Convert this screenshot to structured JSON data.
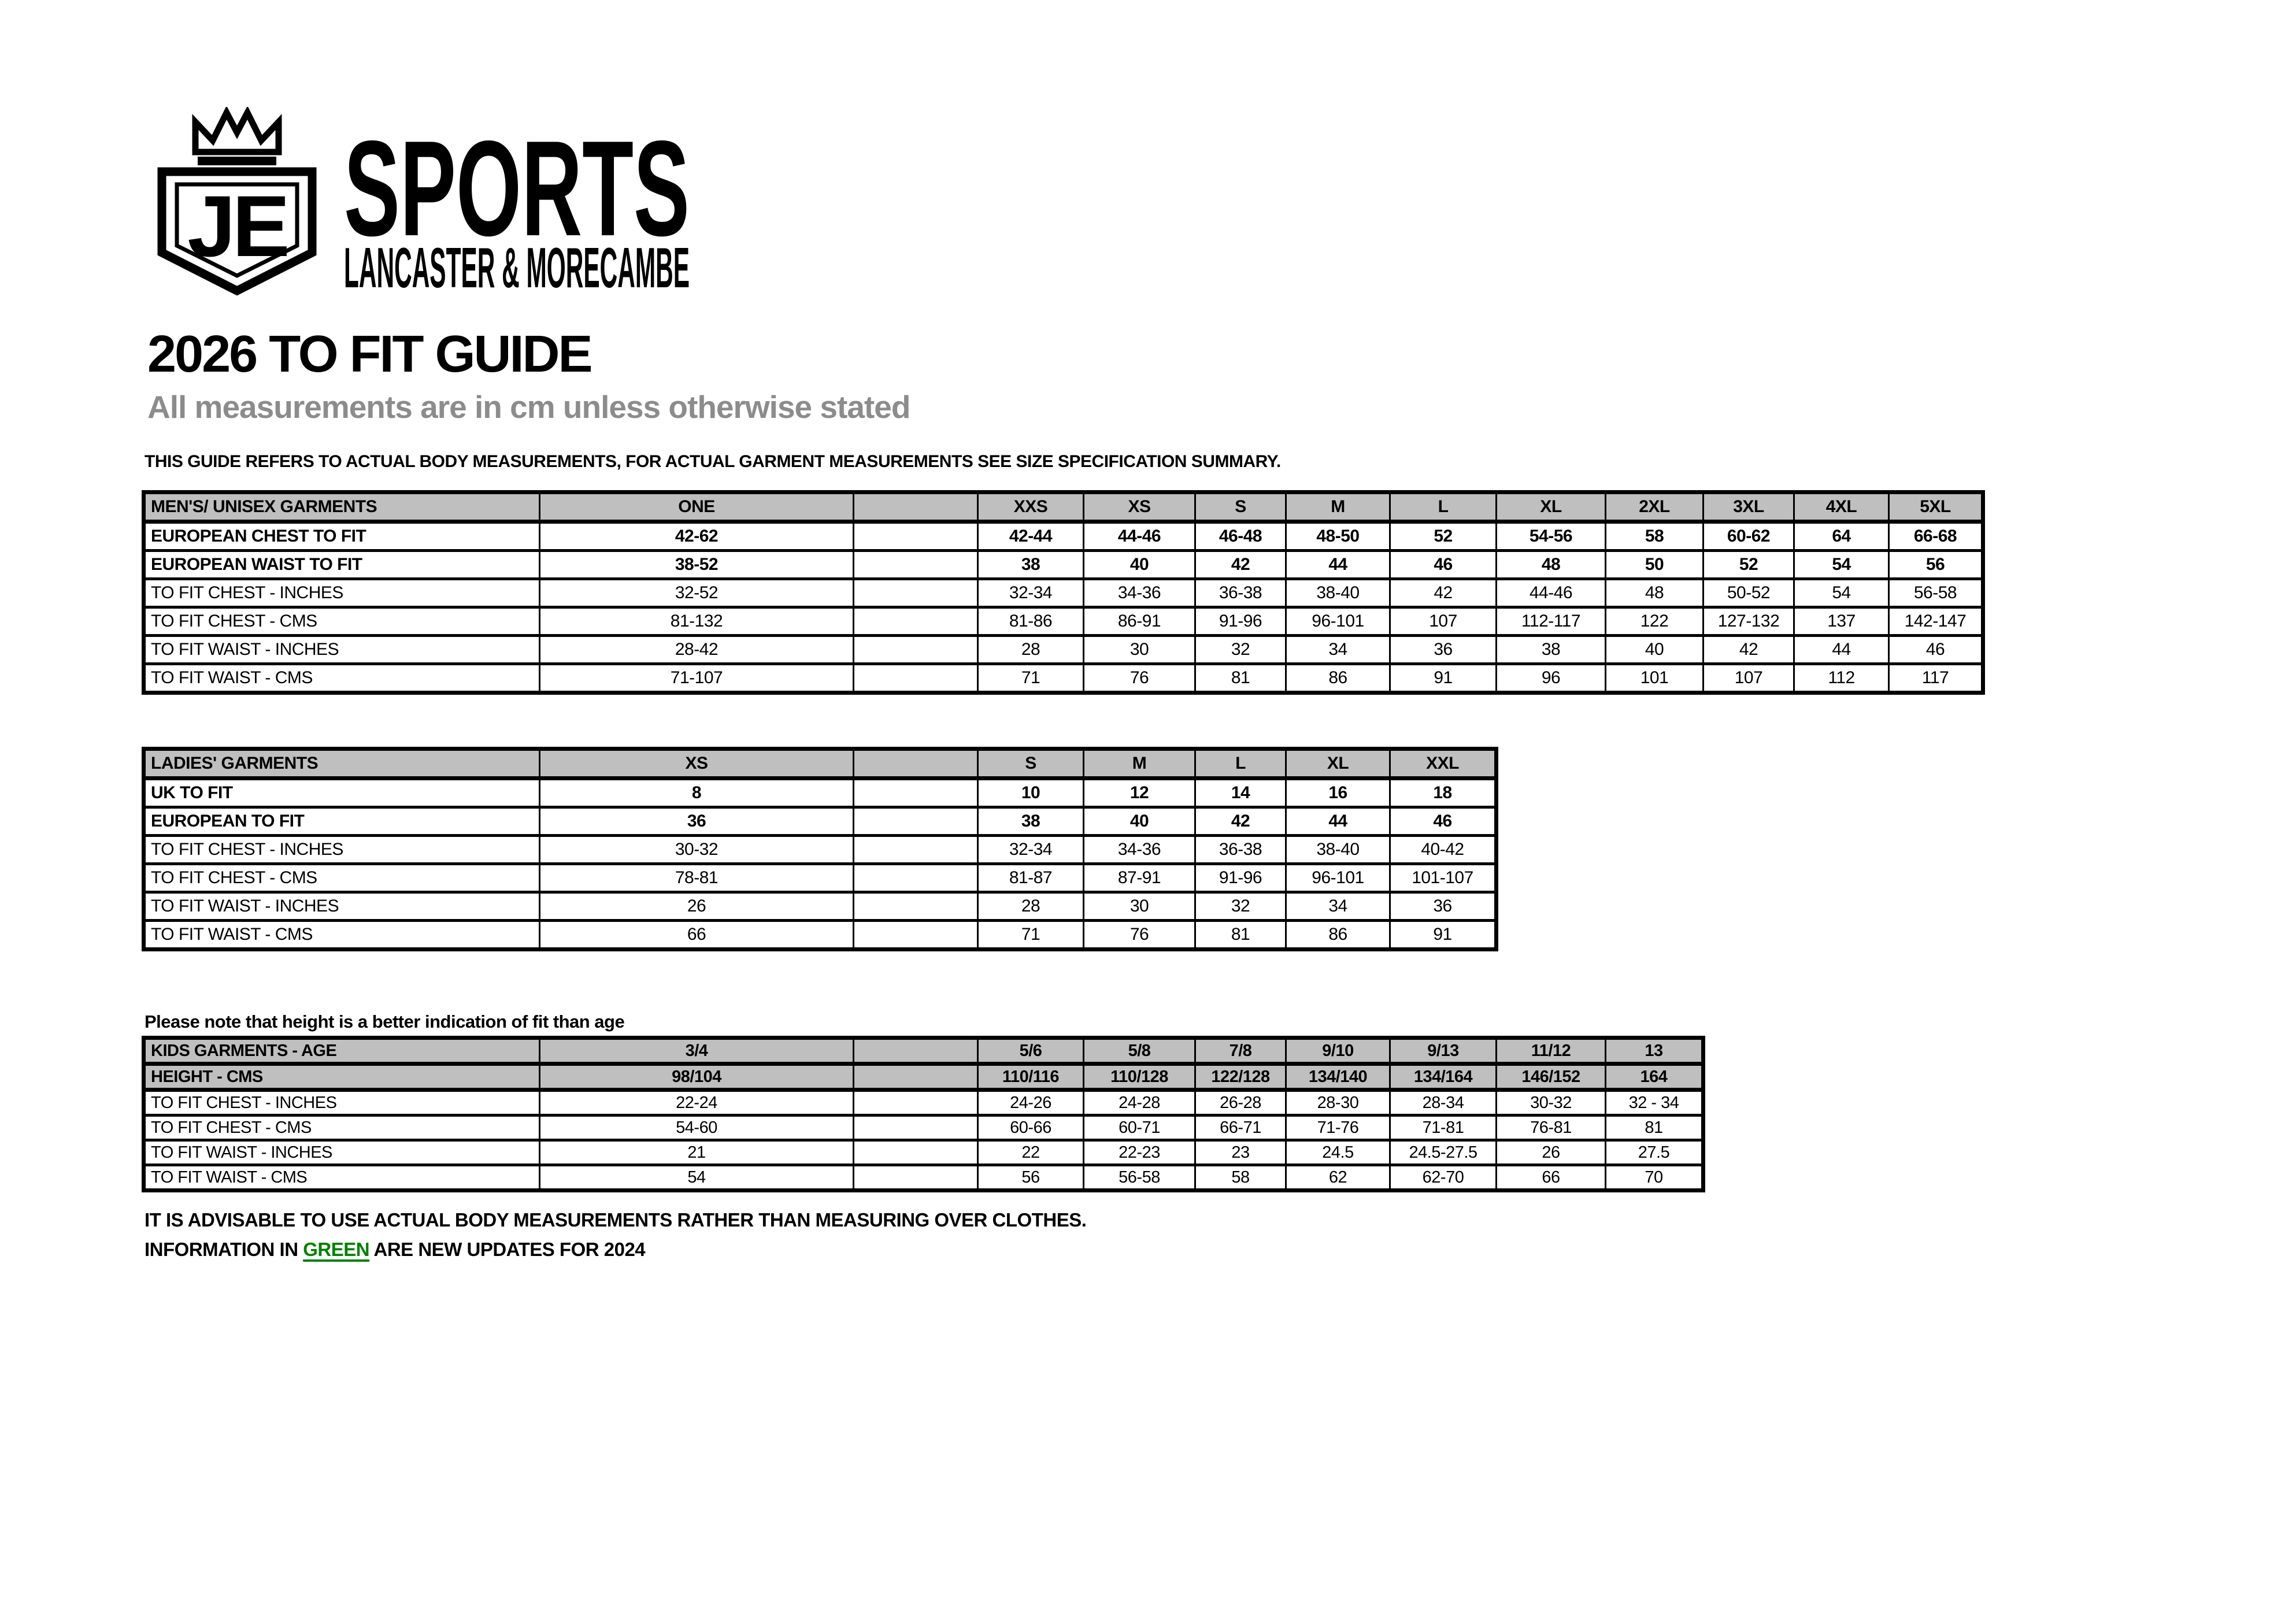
{
  "logo": {
    "monogram": "JE",
    "brand": "SPORTS",
    "tagline": "LANCASTER & MORECAMBE"
  },
  "heading": {
    "title": "2026 TO FIT GUIDE",
    "subtitle": "All measurements are in cm unless otherwise stated",
    "note": "THIS GUIDE REFERS TO ACTUAL BODY MEASUREMENTS, FOR ACTUAL GARMENT MEASUREMENTS SEE SIZE SPECIFICATION SUMMARY."
  },
  "tables": {
    "mens": {
      "rows": [
        {
          "style": "header",
          "label": "MEN'S/ UNISEX GARMENTS",
          "one": "ONE",
          "cells": [
            "XXS",
            "XS",
            "S",
            "M",
            "L",
            "XL",
            "2XL",
            "3XL",
            "4XL",
            "5XL"
          ]
        },
        {
          "style": "bold",
          "label": "EUROPEAN CHEST TO FIT",
          "one": "42-62",
          "cells": [
            "42-44",
            "44-46",
            "46-48",
            "48-50",
            "52",
            "54-56",
            "58",
            "60-62",
            "64",
            "66-68"
          ]
        },
        {
          "style": "bold",
          "label": "EUROPEAN WAIST TO FIT",
          "one": "38-52",
          "cells": [
            "38",
            "40",
            "42",
            "44",
            "46",
            "48",
            "50",
            "52",
            "54",
            "56"
          ]
        },
        {
          "style": "plain",
          "label": "TO FIT CHEST - INCHES",
          "one": "32-52",
          "cells": [
            "32-34",
            "34-36",
            "36-38",
            "38-40",
            "42",
            "44-46",
            "48",
            "50-52",
            "54",
            "56-58"
          ]
        },
        {
          "style": "plain",
          "label": "TO FIT CHEST - CMS",
          "one": "81-132",
          "cells": [
            "81-86",
            "86-91",
            "91-96",
            "96-101",
            "107",
            "112-117",
            "122",
            "127-132",
            "137",
            "142-147"
          ]
        },
        {
          "style": "plain",
          "label": "TO FIT WAIST - INCHES",
          "one": "28-42",
          "cells": [
            "28",
            "30",
            "32",
            "34",
            "36",
            "38",
            "40",
            "42",
            "44",
            "46"
          ]
        },
        {
          "style": "plain",
          "label": "TO FIT WAIST - CMS",
          "one": "71-107",
          "cells": [
            "71",
            "76",
            "81",
            "86",
            "91",
            "96",
            "101",
            "107",
            "112",
            "117"
          ]
        }
      ]
    },
    "ladies": {
      "rows": [
        {
          "style": "header",
          "label": "LADIES' GARMENTS",
          "one": "XS",
          "cells": [
            "S",
            "M",
            "L",
            "XL",
            "XXL"
          ]
        },
        {
          "style": "bold",
          "label": "UK TO FIT",
          "one": "8",
          "cells": [
            "10",
            "12",
            "14",
            "16",
            "18"
          ]
        },
        {
          "style": "bold",
          "label": "EUROPEAN TO FIT",
          "one": "36",
          "cells": [
            "38",
            "40",
            "42",
            "44",
            "46"
          ]
        },
        {
          "style": "plain",
          "label": "TO FIT CHEST - INCHES",
          "one": "30-32",
          "cells": [
            "32-34",
            "34-36",
            "36-38",
            "38-40",
            "40-42"
          ]
        },
        {
          "style": "plain",
          "label": "TO FIT CHEST - CMS",
          "one": "78-81",
          "cells": [
            "81-87",
            "87-91",
            "91-96",
            "96-101",
            "101-107"
          ]
        },
        {
          "style": "plain",
          "label": "TO FIT WAIST - INCHES",
          "one": "26",
          "cells": [
            "28",
            "30",
            "32",
            "34",
            "36"
          ]
        },
        {
          "style": "plain",
          "label": "TO FIT WAIST - CMS",
          "one": "66",
          "cells": [
            "71",
            "76",
            "81",
            "86",
            "91"
          ]
        }
      ]
    },
    "kids": {
      "note": "Please note that height is a better indication of fit than age",
      "rows": [
        {
          "style": "header",
          "label": "KIDS GARMENTS - AGE",
          "one": "3/4",
          "cells": [
            "5/6",
            "5/8",
            "7/8",
            "9/10",
            "9/13",
            "11/12",
            "13"
          ]
        },
        {
          "style": "header",
          "label": "HEIGHT - CMS",
          "one": "98/104",
          "cells": [
            "110/116",
            "110/128",
            "122/128",
            "134/140",
            "134/164",
            "146/152",
            "164"
          ]
        },
        {
          "style": "plain",
          "label": "TO FIT CHEST - INCHES",
          "one": "22-24",
          "cells": [
            "24-26",
            "24-28",
            "26-28",
            "28-30",
            "28-34",
            "30-32",
            "32 - 34"
          ]
        },
        {
          "style": "plain",
          "label": "TO FIT CHEST - CMS",
          "one": "54-60",
          "cells": [
            "60-66",
            "60-71",
            "66-71",
            "71-76",
            "71-81",
            "76-81",
            "81"
          ]
        },
        {
          "style": "plain",
          "label": "TO FIT WAIST - INCHES",
          "one": "21",
          "cells": [
            "22",
            "22-23",
            "23",
            "24.5",
            "24.5-27.5",
            "26",
            "27.5"
          ]
        },
        {
          "style": "plain",
          "label": "TO FIT WAIST - CMS",
          "one": "54",
          "cells": [
            "56",
            "56-58",
            "58",
            "62",
            "62-70",
            "66",
            "70"
          ]
        }
      ]
    }
  },
  "footer": {
    "line1": "IT IS ADVISABLE TO USE ACTUAL BODY MEASUREMENTS RATHER THAN MEASURING OVER CLOTHES.",
    "line2_before": "INFORMATION IN ",
    "line2_green": "GREEN",
    "line2_after": " ARE NEW UPDATES FOR 2024"
  },
  "colors": {
    "header_bg": "#BFBFBF",
    "green": "#008000",
    "subtitle_gray": "#8C8C8C",
    "ink": "#000000"
  }
}
